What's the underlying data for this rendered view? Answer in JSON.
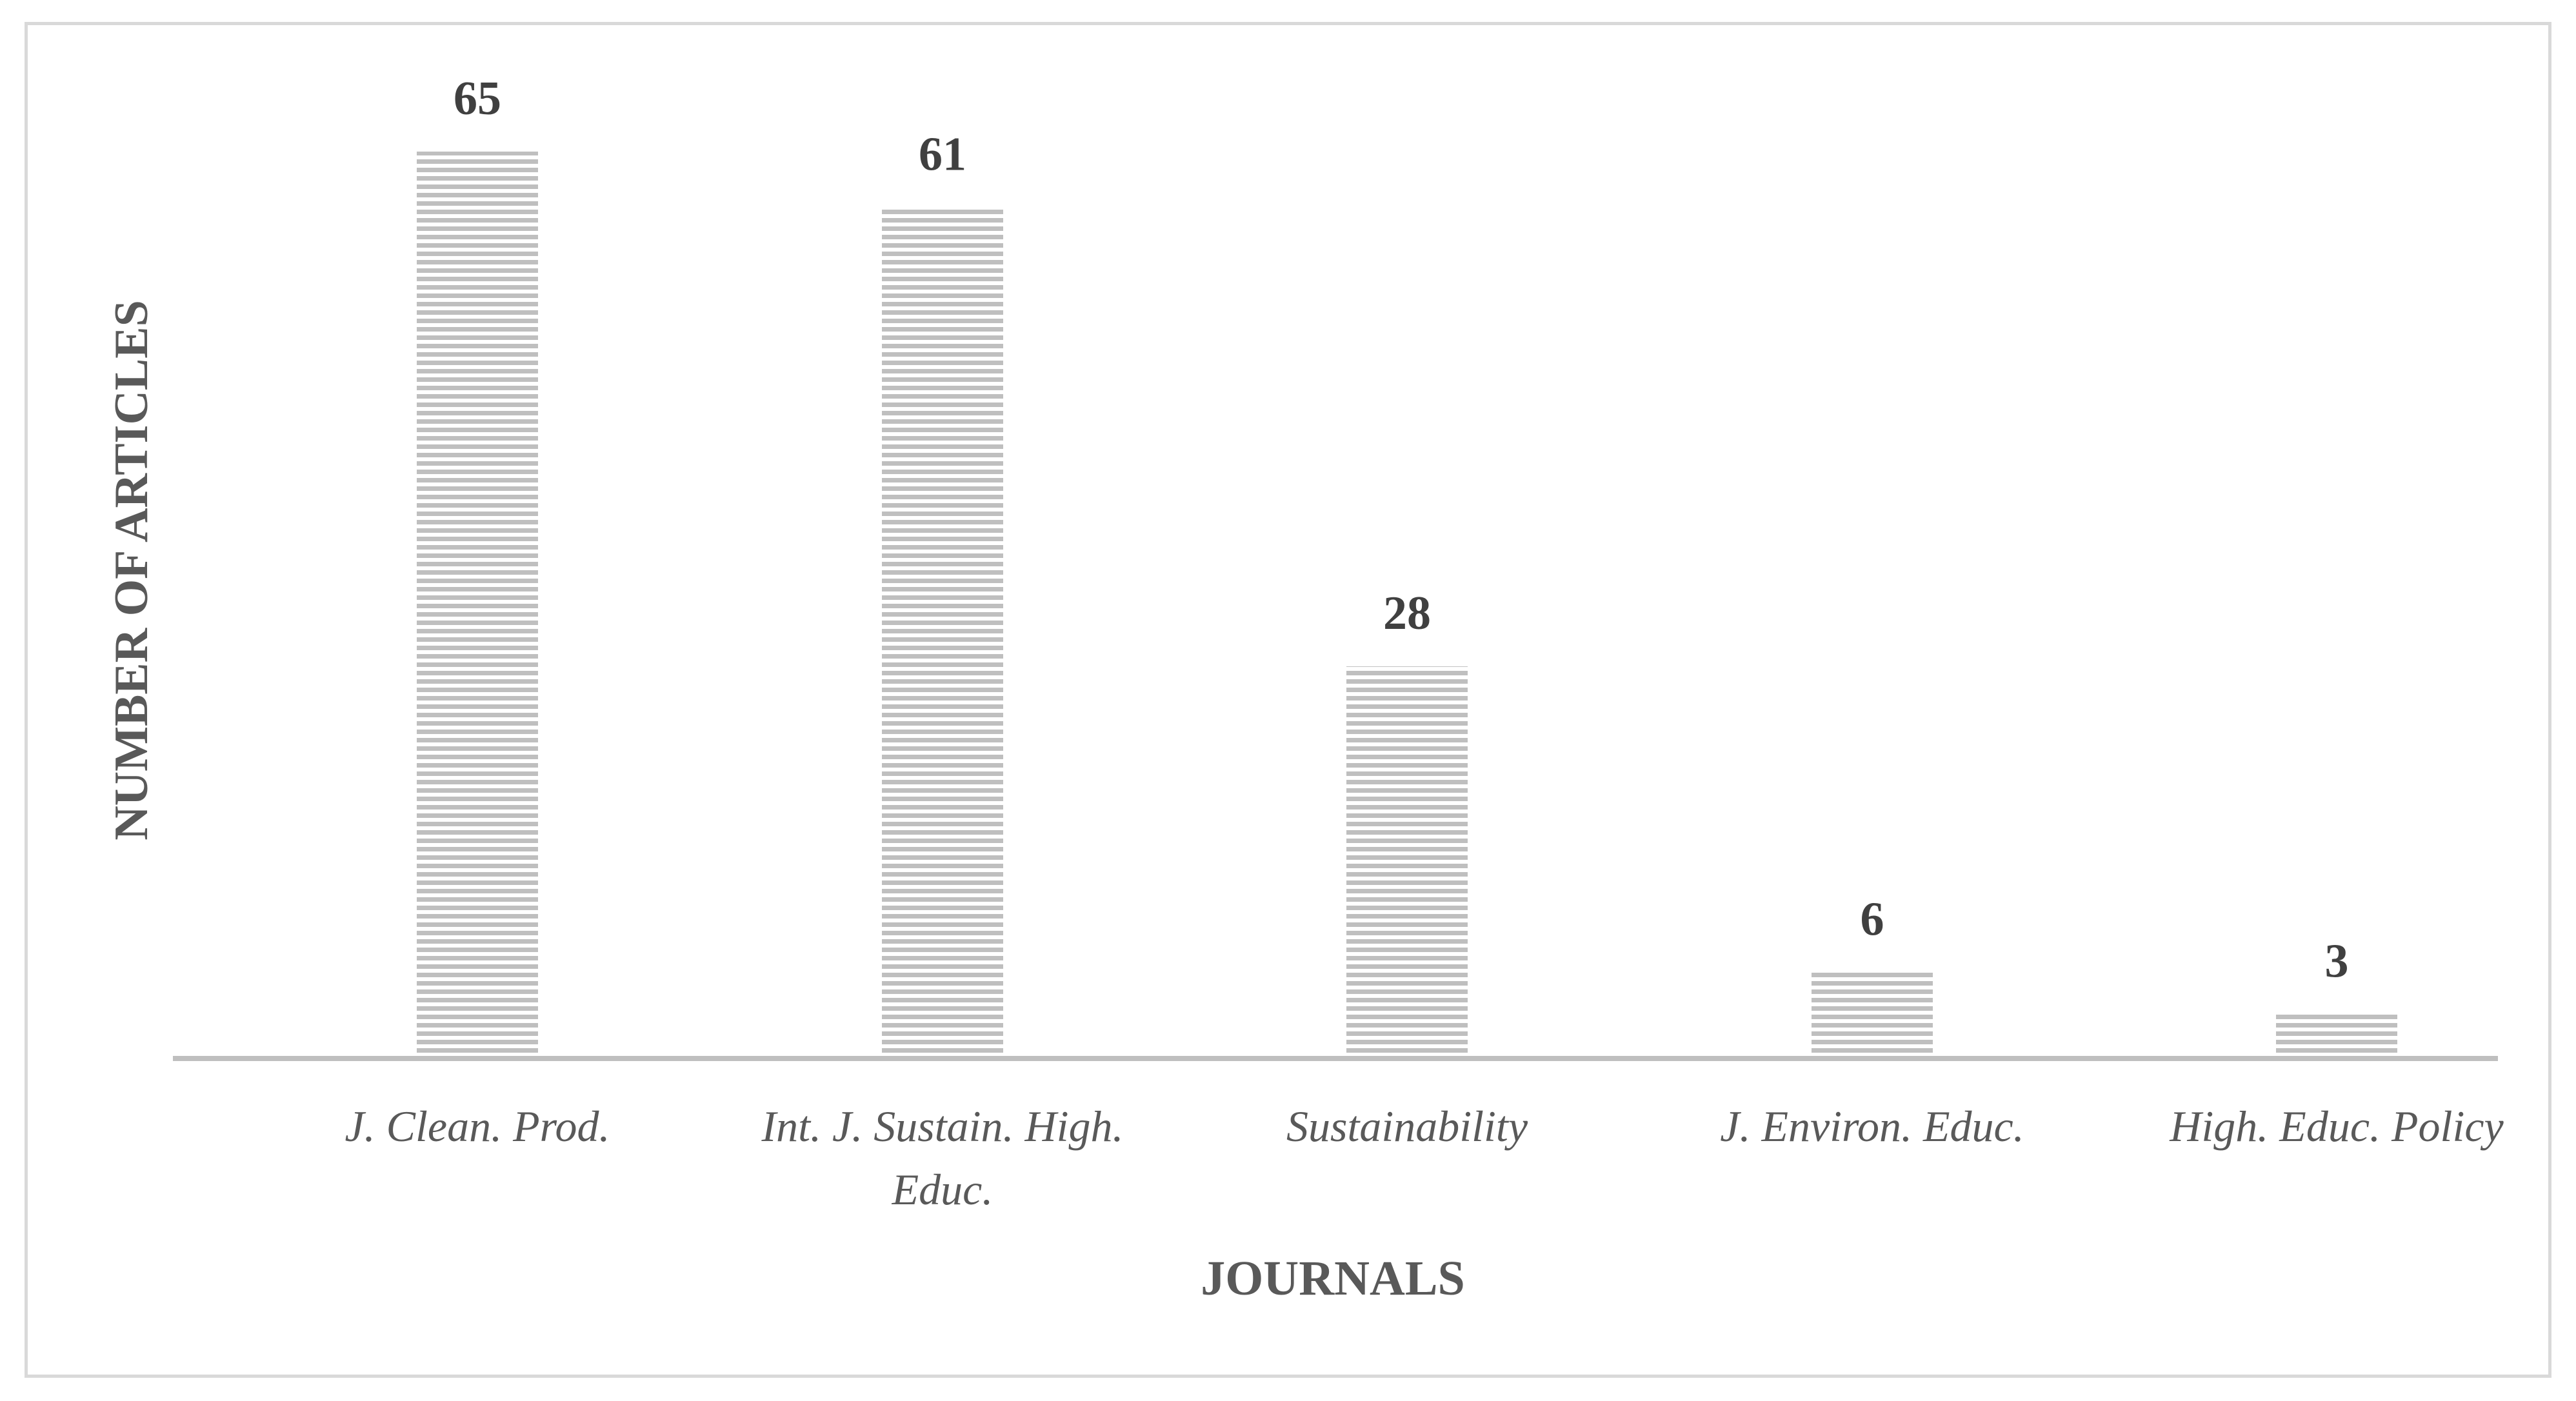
{
  "chart_data": {
    "type": "bar",
    "categories": [
      [
        "J. Clean. Prod."
      ],
      [
        "Int. J. Sustain. High.",
        "Educ."
      ],
      [
        "Sustainability"
      ],
      [
        "J. Environ. Educ."
      ],
      [
        "High. Educ. Policy"
      ]
    ],
    "values": [
      65,
      61,
      28,
      6,
      3
    ],
    "data_labels": [
      "65",
      "61",
      "28",
      "6",
      "3"
    ],
    "xlabel": "JOURNALS",
    "ylabel": "NUMBER OF ARTICLES",
    "ylim": [
      0,
      65
    ],
    "grid": false,
    "legend": "none",
    "bar_color": "#bfbfbf",
    "bar_stripe_color": "#ffffff",
    "axis_color": "#bfbfbf"
  }
}
